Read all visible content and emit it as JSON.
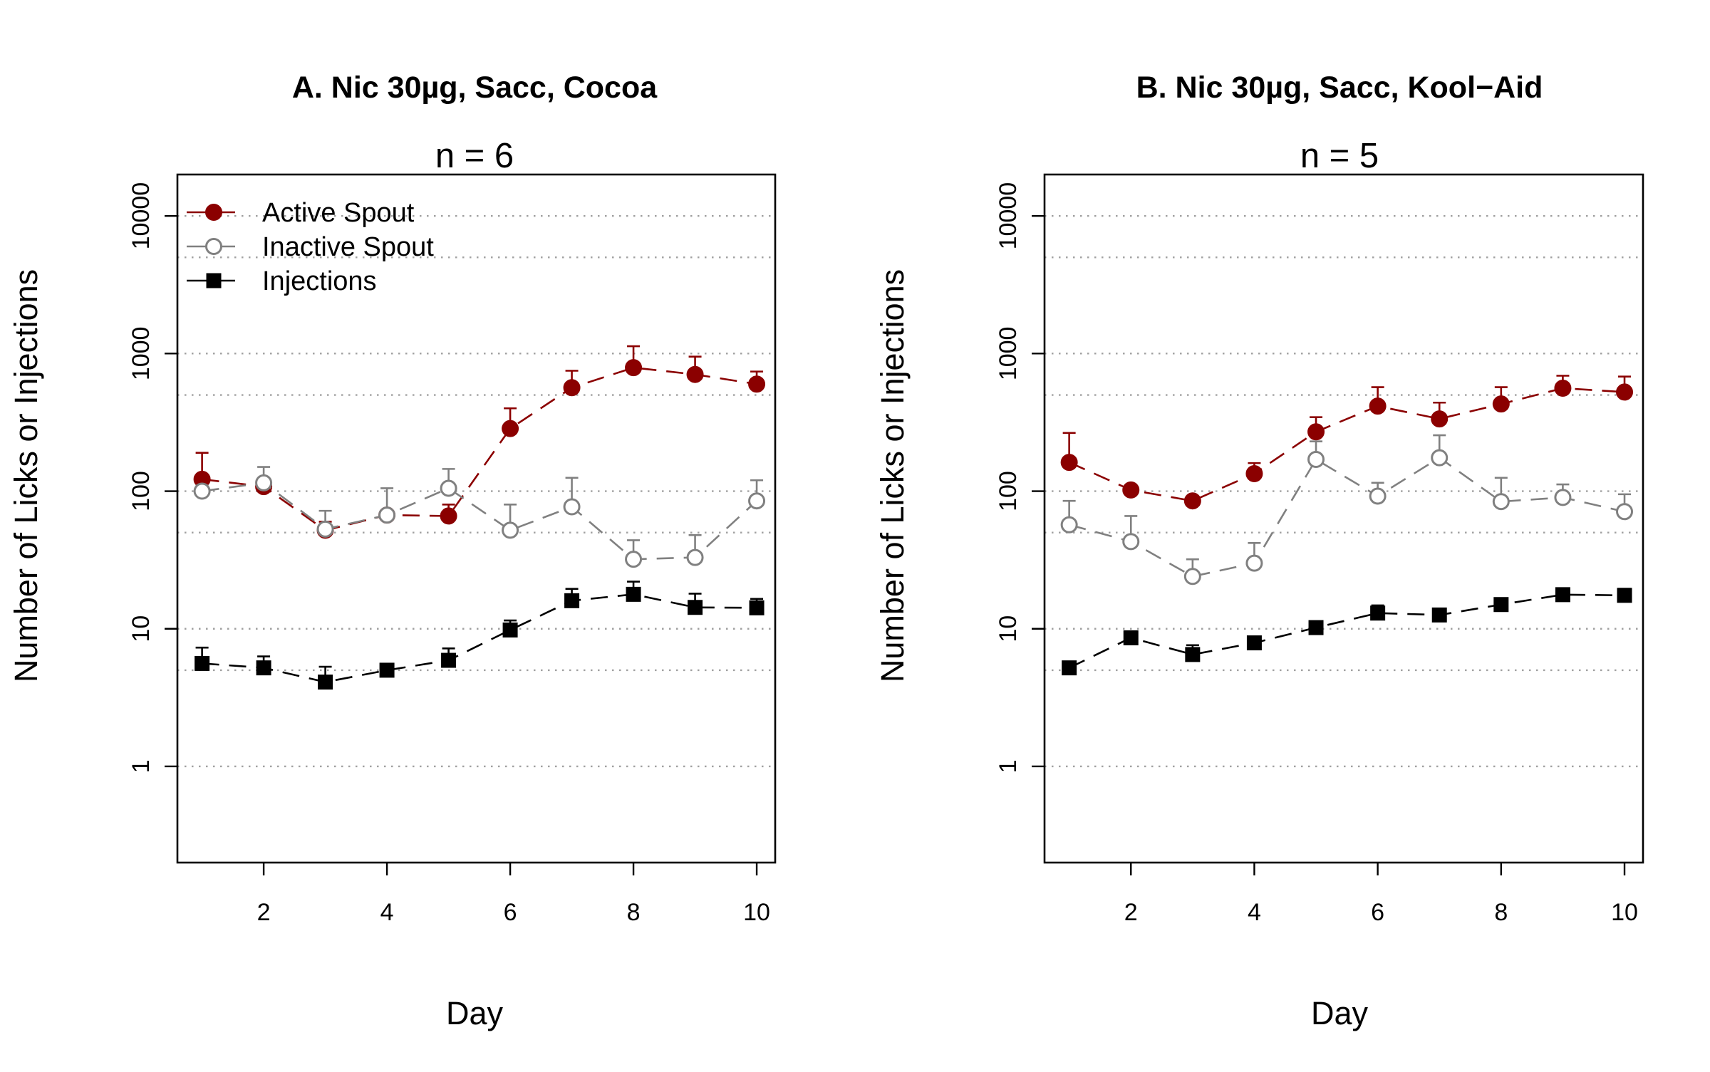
{
  "colors": {
    "active": "#8b0000",
    "inactive": "#808080",
    "injections": "#000000",
    "grid": "#a0a0a0"
  },
  "legend": {
    "entries": [
      {
        "label": "Active Spout",
        "series": "active",
        "marker": "filled-circle"
      },
      {
        "label": "Inactive Spout",
        "series": "inactive",
        "marker": "open-circle"
      },
      {
        "label": "Injections",
        "series": "injections",
        "marker": "filled-square"
      }
    ],
    "placement": "top-left"
  },
  "chart_data": [
    {
      "type": "line",
      "title": "A. Nic 30µg, Sacc, Cocoa",
      "subtitle": "n = 6",
      "xlabel": "Day",
      "ylabel": "Number of Licks or Injections",
      "yscale": "log",
      "ylim": [
        0.2,
        20000
      ],
      "xlim": [
        0.6,
        10.3
      ],
      "xticks": [
        2,
        4,
        6,
        8,
        10
      ],
      "xtick_labels": [
        "2",
        "4",
        "6",
        "8",
        "10"
      ],
      "yticks": [
        1,
        10,
        100,
        1000,
        10000
      ],
      "ytick_labels": [
        "1",
        "10",
        "100",
        "1000",
        "10000"
      ],
      "grid": "dotted horizontal at 1, 5, 10, 50, 100, 500, 1000, 5000, 10000",
      "grid_lines": [
        1,
        5,
        10,
        50,
        100,
        500,
        1000,
        5000,
        10000
      ],
      "legend": true,
      "x": [
        1,
        2,
        3,
        4,
        5,
        6,
        7,
        8,
        9,
        10
      ],
      "series": [
        {
          "key": "active",
          "name": "Active Spout",
          "marker": "filled-circle",
          "values": [
            122,
            108,
            52,
            67,
            66,
            285,
            565,
            790,
            705,
            600
          ],
          "err_upper": [
            190,
            120,
            60,
            72,
            80,
            400,
            750,
            1130,
            950,
            740
          ]
        },
        {
          "key": "inactive",
          "name": "Inactive Spout",
          "marker": "open-circle",
          "values": [
            100,
            115,
            53,
            67,
            105,
            52,
            77,
            32,
            33,
            85
          ],
          "err_upper": [
            110,
            150,
            72,
            105,
            145,
            80,
            125,
            44,
            48,
            120
          ]
        },
        {
          "key": "injections",
          "name": "Injections",
          "marker": "filled-square",
          "values": [
            5.6,
            5.2,
            4.1,
            5.0,
            5.9,
            9.8,
            16,
            17.8,
            14.3,
            14.2
          ],
          "err_upper": [
            7.3,
            6.3,
            5.3,
            5.5,
            7.2,
            11.5,
            19.5,
            22,
            18,
            16.5
          ]
        }
      ]
    },
    {
      "type": "line",
      "title": "B. Nic 30µg, Sacc, Kool−Aid",
      "subtitle": "n = 5",
      "xlabel": "Day",
      "ylabel": "Number of Licks or Injections",
      "yscale": "log",
      "ylim": [
        0.2,
        20000
      ],
      "xlim": [
        0.6,
        10.3
      ],
      "xticks": [
        2,
        4,
        6,
        8,
        10
      ],
      "xtick_labels": [
        "2",
        "4",
        "6",
        "8",
        "10"
      ],
      "yticks": [
        1,
        10,
        100,
        1000,
        10000
      ],
      "ytick_labels": [
        "1",
        "10",
        "100",
        "1000",
        "10000"
      ],
      "grid": "dotted horizontal at 1, 5, 10, 50, 100, 500, 1000, 5000, 10000",
      "grid_lines": [
        1,
        5,
        10,
        50,
        100,
        500,
        1000,
        5000,
        10000
      ],
      "legend": false,
      "x": [
        1,
        2,
        3,
        4,
        5,
        6,
        7,
        8,
        9,
        10
      ],
      "series": [
        {
          "key": "active",
          "name": "Active Spout",
          "marker": "filled-circle",
          "values": [
            162,
            102,
            85,
            134,
            270,
            415,
            335,
            430,
            560,
            525
          ],
          "err_upper": [
            265,
            110,
            90,
            160,
            345,
            570,
            440,
            570,
            690,
            680
          ]
        },
        {
          "key": "inactive",
          "name": "Inactive Spout",
          "marker": "open-circle",
          "values": [
            57,
            43,
            24,
            30,
            170,
            92,
            175,
            84,
            90,
            71
          ],
          "err_upper": [
            85,
            66,
            32,
            42,
            230,
            115,
            255,
            125,
            112,
            95
          ]
        },
        {
          "key": "injections",
          "name": "Injections",
          "marker": "filled-square",
          "values": [
            5.2,
            8.6,
            6.5,
            7.9,
            10.2,
            13,
            12.6,
            15,
            17.7,
            17.5
          ],
          "err_upper": [
            5.6,
            9.3,
            7.6,
            8.5,
            11,
            14.8,
            13.6,
            16,
            18.8,
            19.5
          ]
        }
      ]
    }
  ]
}
